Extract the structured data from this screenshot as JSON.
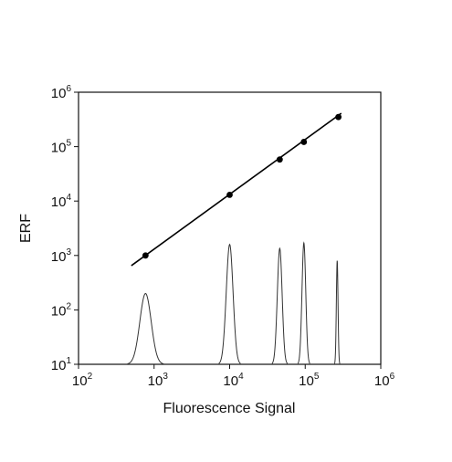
{
  "chart_data": {
    "type": "line",
    "title": "",
    "xlabel": "Fluorescence Signal",
    "ylabel": "ERF",
    "x_scale": "log",
    "y_scale": "log",
    "xlim": [
      100,
      1000000
    ],
    "ylim": [
      10,
      1000000
    ],
    "grid": false,
    "legend": "none",
    "x_ticks": [
      {
        "base": "10",
        "exp": "2"
      },
      {
        "base": "10",
        "exp": "3"
      },
      {
        "base": "10",
        "exp": "4"
      },
      {
        "base": "10",
        "exp": "5"
      },
      {
        "base": "10",
        "exp": "6"
      }
    ],
    "y_ticks": [
      {
        "base": "10",
        "exp": "1"
      },
      {
        "base": "10",
        "exp": "2"
      },
      {
        "base": "10",
        "exp": "3"
      },
      {
        "base": "10",
        "exp": "4"
      },
      {
        "base": "10",
        "exp": "5"
      },
      {
        "base": "10",
        "exp": "6"
      }
    ],
    "calibration_points": {
      "x": [
        770,
        10000,
        46000,
        96000,
        275000
      ],
      "y": [
        1000,
        13000,
        58000,
        122000,
        350000
      ]
    },
    "fit_line": {
      "x": [
        500,
        300000
      ],
      "y": [
        650,
        410000
      ]
    },
    "histogram_peaks": [
      {
        "center": 770,
        "height": 200,
        "width_decades": 0.075
      },
      {
        "center": 10000,
        "height": 1600,
        "width_decades": 0.045
      },
      {
        "center": 46000,
        "height": 1350,
        "width_decades": 0.032
      },
      {
        "center": 96000,
        "height": 1700,
        "width_decades": 0.025
      },
      {
        "center": 265000,
        "height": 800,
        "width_decades": 0.011
      }
    ],
    "colors": {
      "axis": "#111111",
      "line": "#000000",
      "histogram": "#333333",
      "marker": "#000000"
    }
  }
}
